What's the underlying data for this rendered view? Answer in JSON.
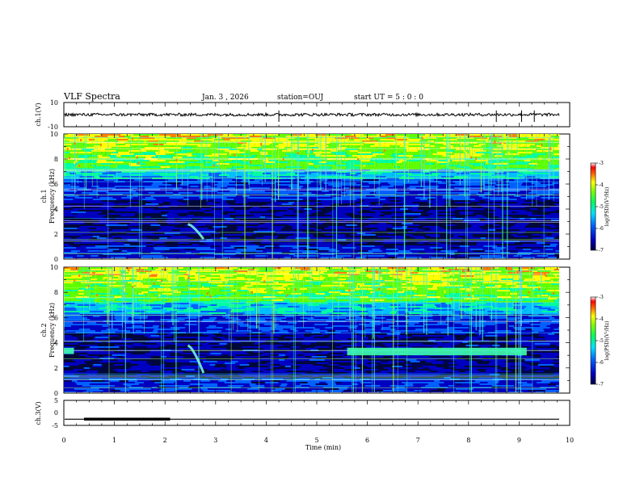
{
  "header": {
    "title": "VLF Spectra",
    "date": "Jan. 3 , 2026",
    "station": "station=OUJ",
    "start_time": "start UT =  5 : 0  : 0"
  },
  "colors": {
    "trace": "#000000",
    "colormap": [
      "#000060",
      "#0000c0",
      "#0060ff",
      "#00c0ff",
      "#00ffa0",
      "#60ff00",
      "#ffff00",
      "#ff8000",
      "#ff0000",
      "#ffffff"
    ]
  },
  "chart_data": [
    {
      "type": "line",
      "name": "ch1-waveform",
      "ylabel": "ch.1(V)",
      "ylim": [
        -10,
        10
      ],
      "yticks": [
        "10",
        "-10"
      ],
      "baseline": 0,
      "spikes_at_min": [
        4.25,
        8.55,
        9.05,
        9.3
      ]
    },
    {
      "type": "heatmap",
      "name": "ch1-spectrogram",
      "ylabel": "ch.1\nFrequency (kHz)",
      "ylabel_lines": [
        "ch.1",
        "Frequency (kHz)"
      ],
      "ylim": [
        0,
        10
      ],
      "yticks": [
        "0",
        "2",
        "4",
        "6",
        "8",
        "10"
      ],
      "colorbar": {
        "label": "log(PSD)(V²/Hz)",
        "range": [
          -7,
          -3
        ],
        "ticks": [
          "-3",
          "-4",
          "-5",
          "-6",
          "-7"
        ]
      },
      "features": {
        "whistler_at_min": 2.55,
        "whistler_freq_khz": [
          1.6,
          2.8
        ]
      }
    },
    {
      "type": "heatmap",
      "name": "ch2-spectrogram",
      "ylabel": "ch.2\nFrequency (kHz)",
      "ylabel_lines": [
        "ch.2",
        "Frequency (kHz)"
      ],
      "ylim": [
        0,
        10
      ],
      "yticks": [
        "0",
        "2",
        "4",
        "6",
        "8",
        "10"
      ],
      "colorbar": {
        "label": "log(PSD)(V²/Hz)",
        "range": [
          -7,
          -3
        ],
        "ticks": [
          "-3",
          "-4",
          "-5",
          "-6",
          "-7"
        ]
      },
      "features": {
        "whistler_at_min": 2.55,
        "whistler_freq_khz": [
          1.6,
          3.8
        ],
        "band_emission": {
          "start_min": 5.6,
          "end_min": 9.15,
          "freq_khz": [
            3.0,
            3.6
          ]
        },
        "early_band": {
          "start_min": 0.0,
          "end_min": 0.2,
          "freq_khz": [
            3.1,
            3.6
          ]
        }
      }
    },
    {
      "type": "line",
      "name": "ch3-signal",
      "ylabel": "ch.3(V)",
      "ylim": [
        -5,
        5
      ],
      "yticks": [
        "5",
        "0",
        "-5"
      ],
      "level": -2.5,
      "thick_segment_min": [
        0.4,
        2.1
      ]
    }
  ],
  "xaxis": {
    "label": "Time (min)",
    "range": [
      0,
      10
    ],
    "ticks": [
      "0",
      "1",
      "2",
      "3",
      "4",
      "5",
      "6",
      "7",
      "8",
      "9",
      "10"
    ]
  }
}
